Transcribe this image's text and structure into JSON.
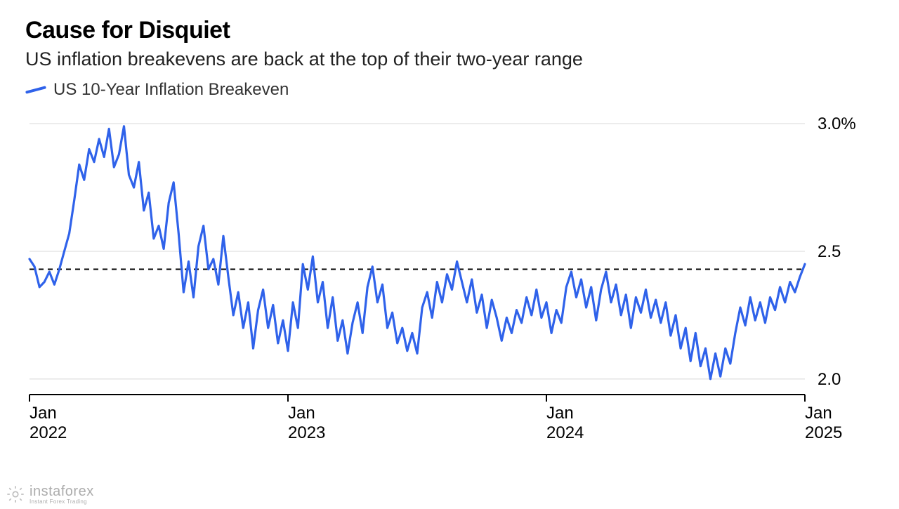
{
  "title": "Cause for Disquiet",
  "subtitle": "US inflation breakevens are back at the top of their two-year range",
  "legend": {
    "label": "US 10-Year Inflation Breakeven",
    "color": "#2f62ea"
  },
  "watermark": {
    "brand": "instaforex",
    "tagline": "Instant Forex Trading"
  },
  "chart": {
    "type": "line",
    "background_color": "#ffffff",
    "grid_color": "#d8d8d8",
    "axis_color": "#000000",
    "dashed_ref_color": "#000000",
    "line_color": "#2f62ea",
    "line_width": 3.2,
    "title_fontsize": 34,
    "subtitle_fontsize": 27,
    "label_fontsize": 24,
    "x": {
      "min": 0,
      "max": 156,
      "ticks": [
        {
          "pos": 0,
          "month": "Jan",
          "year": "2022"
        },
        {
          "pos": 52,
          "month": "Jan",
          "year": "2023"
        },
        {
          "pos": 104,
          "month": "Jan",
          "year": "2024"
        },
        {
          "pos": 156,
          "month": "Jan",
          "year": "2025"
        }
      ]
    },
    "y": {
      "min": 1.95,
      "max": 3.05,
      "ticks": [
        {
          "v": 2.0,
          "label": "2.0"
        },
        {
          "v": 2.5,
          "label": "2.5"
        },
        {
          "v": 3.0,
          "label": "3.0%"
        }
      ],
      "reference_line": 2.43
    },
    "series": [
      [
        0,
        2.47
      ],
      [
        1,
        2.44
      ],
      [
        2,
        2.36
      ],
      [
        3,
        2.38
      ],
      [
        4,
        2.42
      ],
      [
        5,
        2.37
      ],
      [
        6,
        2.43
      ],
      [
        7,
        2.5
      ],
      [
        8,
        2.57
      ],
      [
        9,
        2.7
      ],
      [
        10,
        2.84
      ],
      [
        11,
        2.78
      ],
      [
        12,
        2.9
      ],
      [
        13,
        2.85
      ],
      [
        14,
        2.94
      ],
      [
        15,
        2.87
      ],
      [
        16,
        2.98
      ],
      [
        17,
        2.83
      ],
      [
        18,
        2.88
      ],
      [
        19,
        2.99
      ],
      [
        20,
        2.8
      ],
      [
        21,
        2.75
      ],
      [
        22,
        2.85
      ],
      [
        23,
        2.66
      ],
      [
        24,
        2.73
      ],
      [
        25,
        2.55
      ],
      [
        26,
        2.6
      ],
      [
        27,
        2.51
      ],
      [
        28,
        2.69
      ],
      [
        29,
        2.77
      ],
      [
        30,
        2.57
      ],
      [
        31,
        2.34
      ],
      [
        32,
        2.46
      ],
      [
        33,
        2.32
      ],
      [
        34,
        2.52
      ],
      [
        35,
        2.6
      ],
      [
        36,
        2.43
      ],
      [
        37,
        2.47
      ],
      [
        38,
        2.37
      ],
      [
        39,
        2.56
      ],
      [
        40,
        2.4
      ],
      [
        41,
        2.25
      ],
      [
        42,
        2.34
      ],
      [
        43,
        2.2
      ],
      [
        44,
        2.3
      ],
      [
        45,
        2.12
      ],
      [
        46,
        2.27
      ],
      [
        47,
        2.35
      ],
      [
        48,
        2.2
      ],
      [
        49,
        2.29
      ],
      [
        50,
        2.14
      ],
      [
        51,
        2.23
      ],
      [
        52,
        2.11
      ],
      [
        53,
        2.3
      ],
      [
        54,
        2.2
      ],
      [
        55,
        2.45
      ],
      [
        56,
        2.35
      ],
      [
        57,
        2.48
      ],
      [
        58,
        2.3
      ],
      [
        59,
        2.38
      ],
      [
        60,
        2.2
      ],
      [
        61,
        2.32
      ],
      [
        62,
        2.15
      ],
      [
        63,
        2.23
      ],
      [
        64,
        2.1
      ],
      [
        65,
        2.22
      ],
      [
        66,
        2.3
      ],
      [
        67,
        2.18
      ],
      [
        68,
        2.36
      ],
      [
        69,
        2.44
      ],
      [
        70,
        2.3
      ],
      [
        71,
        2.37
      ],
      [
        72,
        2.2
      ],
      [
        73,
        2.26
      ],
      [
        74,
        2.14
      ],
      [
        75,
        2.2
      ],
      [
        76,
        2.11
      ],
      [
        77,
        2.18
      ],
      [
        78,
        2.1
      ],
      [
        79,
        2.28
      ],
      [
        80,
        2.34
      ],
      [
        81,
        2.24
      ],
      [
        82,
        2.38
      ],
      [
        83,
        2.3
      ],
      [
        84,
        2.41
      ],
      [
        85,
        2.35
      ],
      [
        86,
        2.46
      ],
      [
        87,
        2.38
      ],
      [
        88,
        2.3
      ],
      [
        89,
        2.39
      ],
      [
        90,
        2.26
      ],
      [
        91,
        2.33
      ],
      [
        92,
        2.2
      ],
      [
        93,
        2.31
      ],
      [
        94,
        2.24
      ],
      [
        95,
        2.15
      ],
      [
        96,
        2.24
      ],
      [
        97,
        2.18
      ],
      [
        98,
        2.27
      ],
      [
        99,
        2.22
      ],
      [
        100,
        2.32
      ],
      [
        101,
        2.25
      ],
      [
        102,
        2.35
      ],
      [
        103,
        2.24
      ],
      [
        104,
        2.3
      ],
      [
        105,
        2.18
      ],
      [
        106,
        2.27
      ],
      [
        107,
        2.22
      ],
      [
        108,
        2.36
      ],
      [
        109,
        2.42
      ],
      [
        110,
        2.32
      ],
      [
        111,
        2.39
      ],
      [
        112,
        2.28
      ],
      [
        113,
        2.36
      ],
      [
        114,
        2.23
      ],
      [
        115,
        2.35
      ],
      [
        116,
        2.42
      ],
      [
        117,
        2.3
      ],
      [
        118,
        2.37
      ],
      [
        119,
        2.25
      ],
      [
        120,
        2.33
      ],
      [
        121,
        2.2
      ],
      [
        122,
        2.32
      ],
      [
        123,
        2.26
      ],
      [
        124,
        2.35
      ],
      [
        125,
        2.24
      ],
      [
        126,
        2.31
      ],
      [
        127,
        2.22
      ],
      [
        128,
        2.3
      ],
      [
        129,
        2.17
      ],
      [
        130,
        2.25
      ],
      [
        131,
        2.12
      ],
      [
        132,
        2.2
      ],
      [
        133,
        2.07
      ],
      [
        134,
        2.18
      ],
      [
        135,
        2.05
      ],
      [
        136,
        2.12
      ],
      [
        137,
        2.0
      ],
      [
        138,
        2.1
      ],
      [
        139,
        2.01
      ],
      [
        140,
        2.12
      ],
      [
        141,
        2.06
      ],
      [
        142,
        2.18
      ],
      [
        143,
        2.28
      ],
      [
        144,
        2.21
      ],
      [
        145,
        2.32
      ],
      [
        146,
        2.23
      ],
      [
        147,
        2.3
      ],
      [
        148,
        2.22
      ],
      [
        149,
        2.32
      ],
      [
        150,
        2.27
      ],
      [
        151,
        2.36
      ],
      [
        152,
        2.3
      ],
      [
        153,
        2.38
      ],
      [
        154,
        2.34
      ],
      [
        155,
        2.4
      ],
      [
        156,
        2.45
      ]
    ]
  }
}
